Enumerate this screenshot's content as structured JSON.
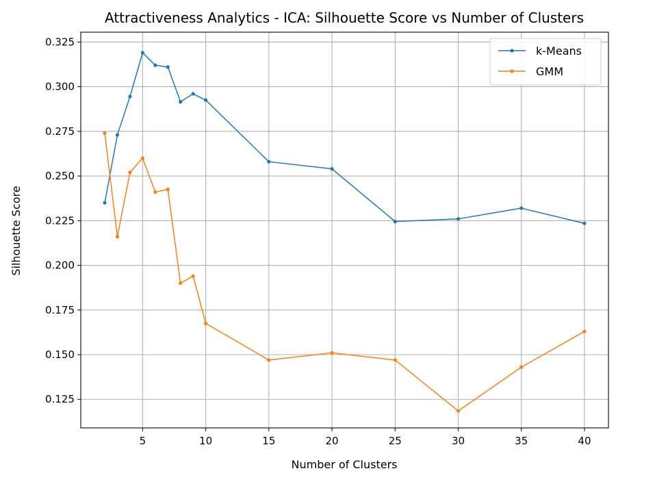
{
  "chart_data": {
    "type": "line",
    "title": "Attractiveness Analytics - ICA: Silhouette Score vs Number of Clusters",
    "xlabel": "Number of Clusters",
    "ylabel": "Silhouette Score",
    "xlim": [
      0.1,
      41.9
    ],
    "ylim": [
      0.109,
      0.3305
    ],
    "xticks": [
      5,
      10,
      15,
      20,
      25,
      30,
      35,
      40
    ],
    "yticks": [
      0.125,
      0.15,
      0.175,
      0.2,
      0.225,
      0.25,
      0.275,
      0.3,
      0.325
    ],
    "grid": true,
    "legend_position": "top-right",
    "x": [
      2,
      3,
      4,
      5,
      6,
      7,
      8,
      9,
      10,
      15,
      20,
      25,
      30,
      35,
      40
    ],
    "series": [
      {
        "name": "k-Means",
        "color": "#1f77b4",
        "values": [
          0.235,
          0.273,
          0.2945,
          0.319,
          0.312,
          0.311,
          0.2915,
          0.296,
          0.2925,
          0.258,
          0.254,
          0.2245,
          0.226,
          0.232,
          0.2235
        ]
      },
      {
        "name": "GMM",
        "color": "#ff7f0e",
        "values": [
          0.274,
          0.216,
          0.252,
          0.26,
          0.241,
          0.2425,
          0.19,
          0.194,
          0.1675,
          0.147,
          0.151,
          0.147,
          0.1185,
          0.143,
          0.163
        ]
      }
    ]
  }
}
